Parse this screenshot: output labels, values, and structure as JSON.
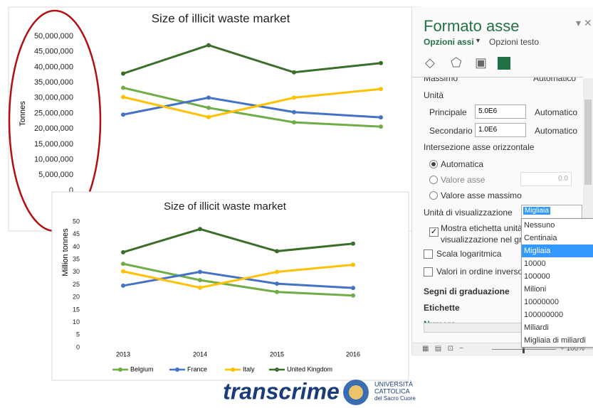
{
  "chart_data": [
    {
      "type": "line",
      "title": "Size of illicit waste market",
      "y_label": "Tonnes",
      "ylim": [
        0,
        50000000
      ],
      "yticks": [
        0,
        {
          "value": 5000000,
          "label": "5,000,000"
        },
        {
          "value": 10000000,
          "label": "10,000,000"
        },
        {
          "value": 15000000,
          "label": "15,000,000"
        },
        {
          "value": 20000000,
          "label": "20,000,000"
        },
        {
          "value": 25000000,
          "label": "25,000,000"
        },
        {
          "value": 30000000,
          "label": "30,000,000"
        },
        {
          "value": 35000000,
          "label": "35,000,000"
        },
        {
          "value": 40000000,
          "label": "40,000,000"
        },
        {
          "value": 45000000,
          "label": "45,000,000"
        },
        {
          "value": 50000000,
          "label": "50,000,000"
        }
      ],
      "series": [
        {
          "color": "#70ad47",
          "values": [
            33300000,
            26800000,
            22100000,
            20700000
          ]
        },
        {
          "color": "#4472c4",
          "values": [
            24600000,
            30100000,
            25400000,
            23700000
          ]
        },
        {
          "color": "#ffc000",
          "values": [
            30300000,
            23800000,
            30100000,
            32900000
          ]
        },
        {
          "color": "#3b6e2a",
          "values": [
            37900000,
            47100000,
            38300000,
            41300000
          ]
        }
      ]
    },
    {
      "type": "line",
      "title": "Size of illicit waste market",
      "y_label": "Million tonnes",
      "categories": [
        "2013",
        "2014",
        "2015",
        "2016"
      ],
      "ylim": [
        0,
        50
      ],
      "yticks": [
        0,
        5,
        10,
        15,
        20,
        25,
        30,
        35,
        40,
        45,
        50
      ],
      "series": [
        {
          "name": "Belgium",
          "color": "#70ad47",
          "values": [
            33.3,
            26.8,
            22.1,
            20.7
          ]
        },
        {
          "name": "France",
          "color": "#4472c4",
          "values": [
            24.6,
            30.1,
            25.4,
            23.7
          ]
        },
        {
          "name": "Italy",
          "color": "#ffc000",
          "values": [
            30.3,
            23.8,
            30.1,
            32.9
          ]
        },
        {
          "name": "United Kingdom",
          "color": "#3b6e2a",
          "values": [
            37.9,
            47.1,
            38.3,
            41.3
          ]
        }
      ]
    }
  ],
  "panel": {
    "title": "Formato asse",
    "tab_active": "Opzioni assi",
    "tab_other": "Opzioni testo",
    "max_label": "Massimo",
    "max_auto": "Automatico",
    "units": "Unità",
    "major": "Principale",
    "major_value": "5.0E6",
    "major_auto": "Automatico",
    "minor": "Secondario",
    "minor_value": "1.0E6",
    "minor_auto": "Automatico",
    "crosses": "Intersezione asse orizzontale",
    "crosses_auto": "Automatica",
    "crosses_value": "Valore asse",
    "crosses_value_box": "0.0",
    "crosses_max": "Valore asse massimo",
    "display_units": "Unità di visualizzazione",
    "display_units_selected": "Migliaia",
    "show_label_1": "Mostra etichetta unità d",
    "show_label_2": "visualizzazione nel graf",
    "log_scale": "Scala logaritmica",
    "reverse": "Valori in ordine inverso",
    "tick_marks": "Segni di graduazione",
    "labels": "Etichette",
    "number": "Numero",
    "dropdown_items": [
      "Nessuno",
      "Centinaia",
      "Migliaia",
      "10000",
      "100000",
      "Milioni",
      "10000000",
      "100000000",
      "Miliardi",
      "Migliaia di miliardi"
    ],
    "dropdown_highlight": 2,
    "zoom": "100%"
  },
  "footer": {
    "brand": "transcrime",
    "university_1": "UNIVERSITÀ",
    "university_2": "CATTOLICA",
    "university_3": "del Sacro Cuore"
  }
}
